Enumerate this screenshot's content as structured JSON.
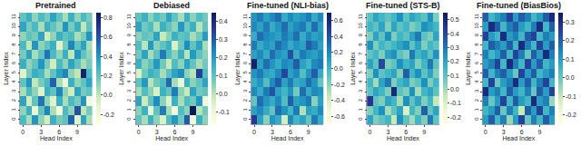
{
  "chart_data": [
    {
      "type": "heatmap",
      "title": "Pretrained",
      "x_label": "Head Index",
      "y_label": "Layer Index",
      "color": "YlGnBu",
      "x": [
        0,
        1,
        2,
        3,
        4,
        5,
        6,
        7,
        8,
        9,
        10,
        11
      ],
      "y": [
        0,
        1,
        2,
        3,
        4,
        5,
        6,
        7,
        8,
        9,
        10,
        11
      ],
      "xlim": [
        -0.5,
        11.5
      ],
      "ylim": [
        -0.5,
        11.5
      ],
      "xticks": [
        0,
        3,
        6,
        9
      ],
      "yticks": [
        0,
        1,
        2,
        3,
        4,
        5,
        6,
        7,
        8,
        9,
        10,
        11
      ],
      "zlim": [
        -0.3,
        0.85
      ],
      "zticks": [
        -0.2,
        {
          "value": 0,
          "label": "0.0"
        },
        0.2,
        0.4,
        0.6,
        0.8
      ],
      "z": [
        [
          0.25,
          0.05,
          0.4,
          0.1,
          -0.05,
          0.3,
          0.15,
          0.2,
          0.55,
          -0.1,
          0.35,
          0.05
        ],
        [
          0.1,
          0.3,
          -0.15,
          0.2,
          0.45,
          0.05,
          -0.2,
          0.25,
          0.1,
          0.6,
          0.0,
          0.15
        ],
        [
          0.35,
          -0.05,
          0.2,
          0.5,
          0.1,
          -0.1,
          0.3,
          0.05,
          0.25,
          0.15,
          0.4,
          -0.2
        ],
        [
          0.05,
          0.25,
          0.1,
          -0.1,
          0.3,
          0.2,
          0.45,
          0.1,
          -0.05,
          0.35,
          0.15,
          0.2
        ],
        [
          0.2,
          0.4,
          0.0,
          0.15,
          0.25,
          0.55,
          0.05,
          -0.15,
          0.3,
          0.1,
          0.2,
          0.35
        ],
        [
          -0.1,
          0.15,
          0.3,
          0.25,
          0.05,
          0.2,
          0.35,
          0.45,
          0.1,
          0.0,
          0.8,
          0.25
        ],
        [
          0.3,
          0.1,
          0.2,
          0.4,
          0.15,
          -0.05,
          0.25,
          0.1,
          0.35,
          0.2,
          0.05,
          0.15
        ],
        [
          0.15,
          0.35,
          0.05,
          0.2,
          0.5,
          0.25,
          0.1,
          0.3,
          0.0,
          0.4,
          0.2,
          0.1
        ],
        [
          0.25,
          0.0,
          0.4,
          0.1,
          0.2,
          0.3,
          -0.1,
          0.15,
          0.45,
          0.2,
          0.35,
          0.05
        ],
        [
          0.1,
          0.2,
          0.15,
          0.35,
          -0.05,
          0.1,
          0.3,
          0.2,
          0.25,
          0.05,
          0.15,
          0.4
        ],
        [
          0.35,
          0.15,
          0.25,
          0.05,
          0.3,
          0.2,
          0.1,
          0.4,
          0.15,
          0.3,
          0.0,
          0.2
        ],
        [
          0.2,
          0.3,
          0.1,
          0.25,
          0.15,
          0.35,
          0.2,
          0.05,
          0.3,
          0.1,
          0.25,
          0.15
        ]
      ]
    },
    {
      "type": "heatmap",
      "title": "Debiased",
      "x_label": "Head Index",
      "y_label": "Layer Index",
      "color": "YlGnBu",
      "x": [
        0,
        1,
        2,
        3,
        4,
        5,
        6,
        7,
        8,
        9,
        10,
        11
      ],
      "y": [
        0,
        1,
        2,
        3,
        4,
        5,
        6,
        7,
        8,
        9,
        10,
        11
      ],
      "xlim": [
        -0.5,
        11.5
      ],
      "ylim": [
        -0.5,
        11.5
      ],
      "xticks": [
        0,
        3,
        6,
        9
      ],
      "yticks": [
        0,
        1,
        2,
        3,
        4,
        5,
        6,
        7,
        8,
        9,
        10,
        11
      ],
      "zlim": [
        -0.17,
        0.45
      ],
      "zticks": [
        -0.1,
        {
          "value": 0,
          "label": "0.0"
        },
        0.1,
        0.2,
        0.3,
        0.4
      ],
      "z": [
        [
          0.1,
          0.02,
          0.15,
          0.05,
          -0.05,
          0.12,
          0.2,
          0.08,
          0.3,
          -0.1,
          0.15,
          0.05
        ],
        [
          0.05,
          0.15,
          -0.08,
          0.1,
          0.25,
          0.02,
          -0.12,
          0.12,
          0.05,
          0.45,
          0.0,
          0.08
        ],
        [
          0.18,
          -0.03,
          0.1,
          0.22,
          0.05,
          -0.06,
          0.15,
          0.02,
          0.12,
          0.08,
          0.2,
          -0.1
        ],
        [
          0.02,
          0.12,
          0.05,
          -0.05,
          0.15,
          0.1,
          0.25,
          0.05,
          -0.02,
          0.18,
          0.08,
          0.1
        ],
        [
          0.1,
          0.2,
          0.0,
          0.08,
          0.12,
          0.28,
          0.02,
          -0.08,
          0.15,
          0.05,
          0.1,
          0.18
        ],
        [
          -0.05,
          0.08,
          0.15,
          0.12,
          0.02,
          0.1,
          0.18,
          0.22,
          0.05,
          0.0,
          0.35,
          0.12
        ],
        [
          0.15,
          0.05,
          0.1,
          0.2,
          0.08,
          -0.02,
          0.12,
          0.05,
          0.18,
          0.1,
          0.02,
          0.08
        ],
        [
          0.08,
          0.18,
          0.02,
          0.1,
          0.25,
          0.12,
          0.05,
          0.15,
          0.0,
          0.2,
          0.1,
          0.05
        ],
        [
          0.12,
          0.0,
          0.2,
          0.05,
          0.1,
          0.15,
          -0.05,
          0.08,
          0.22,
          0.1,
          0.18,
          0.02
        ],
        [
          0.05,
          0.1,
          0.08,
          0.18,
          -0.02,
          0.05,
          0.15,
          0.1,
          0.12,
          0.02,
          0.08,
          0.2
        ],
        [
          0.18,
          0.08,
          0.12,
          0.02,
          0.15,
          0.1,
          0.05,
          0.2,
          0.08,
          0.15,
          0.0,
          0.1
        ],
        [
          0.1,
          0.15,
          0.05,
          0.12,
          0.08,
          0.18,
          0.1,
          0.02,
          0.15,
          0.05,
          0.12,
          0.08
        ]
      ]
    },
    {
      "type": "heatmap",
      "title": "Fine-tuned (NLI-bias)",
      "x_label": "Head Index",
      "y_label": "Layer Index",
      "color": "YlGnBu",
      "x": [
        0,
        1,
        2,
        3,
        4,
        5,
        6,
        7,
        8,
        9,
        10,
        11
      ],
      "y": [
        0,
        1,
        2,
        3,
        4,
        5,
        6,
        7,
        8,
        9,
        10,
        11
      ],
      "xlim": [
        -0.5,
        11.5
      ],
      "ylim": [
        -0.5,
        11.5
      ],
      "xticks": [
        0,
        3,
        6,
        9
      ],
      "yticks": [
        0,
        1,
        2,
        3,
        4,
        5,
        6,
        7,
        8,
        9,
        10,
        11
      ],
      "zlim": [
        -0.7,
        0.7
      ],
      "zticks": [
        -0.6,
        -0.4,
        -0.2,
        {
          "value": 0,
          "label": "0.0"
        },
        0.2,
        0.4,
        0.6
      ],
      "z": [
        [
          0.5,
          0.1,
          -0.2,
          0.15,
          0.05,
          -0.4,
          0.2,
          0.0,
          0.1,
          -0.1,
          0.25,
          0.05
        ],
        [
          0.1,
          0.2,
          0.05,
          -0.1,
          0.3,
          0.15,
          0.0,
          0.25,
          -0.3,
          0.1,
          0.05,
          0.2
        ],
        [
          -0.1,
          0.3,
          0.15,
          0.05,
          0.2,
          -0.05,
          0.35,
          0.1,
          0.15,
          0.25,
          -0.2,
          0.1
        ],
        [
          0.2,
          0.05,
          0.25,
          0.4,
          0.1,
          0.0,
          0.15,
          -0.15,
          0.3,
          0.05,
          0.2,
          0.15
        ],
        [
          0.05,
          0.15,
          -0.05,
          0.2,
          0.35,
          0.1,
          0.25,
          0.05,
          0.1,
          0.3,
          0.15,
          -0.1
        ],
        [
          0.15,
          0.25,
          0.1,
          0.05,
          0.2,
          0.45,
          0.1,
          0.2,
          -0.05,
          0.15,
          0.35,
          0.05
        ],
        [
          0.65,
          0.1,
          0.3,
          0.15,
          0.05,
          0.2,
          0.15,
          0.35,
          0.1,
          0.0,
          0.2,
          0.25
        ],
        [
          0.1,
          0.2,
          0.05,
          0.3,
          0.15,
          0.1,
          0.4,
          0.05,
          0.25,
          0.15,
          0.1,
          0.2
        ],
        [
          0.25,
          0.05,
          0.15,
          0.1,
          0.3,
          0.2,
          0.05,
          0.15,
          0.1,
          0.35,
          0.25,
          0.1
        ],
        [
          0.05,
          0.3,
          0.2,
          0.15,
          0.1,
          0.25,
          0.15,
          0.3,
          0.05,
          0.2,
          0.1,
          0.15
        ],
        [
          0.2,
          0.1,
          0.25,
          0.05,
          0.15,
          0.3,
          0.1,
          0.2,
          0.25,
          0.05,
          0.3,
          0.1
        ],
        [
          0.15,
          0.25,
          0.1,
          0.2,
          0.3,
          0.05,
          0.2,
          0.1,
          0.15,
          0.25,
          0.05,
          0.2
        ]
      ]
    },
    {
      "type": "heatmap",
      "title": "Fine-tuned (STS-B)",
      "x_label": "Head Index",
      "y_label": "Layer Index",
      "color": "YlGnBu",
      "x": [
        0,
        1,
        2,
        3,
        4,
        5,
        6,
        7,
        8,
        9,
        10,
        11
      ],
      "y": [
        0,
        1,
        2,
        3,
        4,
        5,
        6,
        7,
        8,
        9,
        10,
        11
      ],
      "xlim": [
        -0.5,
        11.5
      ],
      "ylim": [
        -0.5,
        11.5
      ],
      "xticks": [
        0,
        3,
        6,
        9
      ],
      "yticks": [
        0,
        1,
        2,
        3,
        4,
        5,
        6,
        7,
        8,
        9,
        10,
        11
      ],
      "zlim": [
        -0.25,
        0.55
      ],
      "zticks": [
        -0.2,
        -0.1,
        {
          "value": 0,
          "label": "0.0"
        },
        0.1,
        0.2,
        0.3,
        0.4,
        0.5
      ],
      "z": [
        [
          0.2,
          0.05,
          0.1,
          0.15,
          -0.05,
          0.25,
          0.1,
          0.0,
          0.15,
          0.05,
          0.3,
          0.1
        ],
        [
          0.05,
          0.15,
          0.25,
          0.0,
          0.1,
          0.2,
          -0.1,
          0.15,
          0.05,
          0.35,
          0.1,
          0.2
        ],
        [
          0.45,
          0.1,
          0.05,
          0.2,
          0.15,
          0.0,
          0.25,
          0.1,
          0.2,
          0.05,
          0.15,
          -0.05
        ],
        [
          0.1,
          0.2,
          0.15,
          0.05,
          0.5,
          0.1,
          0.05,
          0.25,
          0.0,
          0.15,
          0.2,
          0.1
        ],
        [
          0.15,
          0.0,
          0.2,
          0.3,
          0.05,
          0.15,
          0.2,
          0.05,
          0.1,
          0.25,
          0.05,
          0.15
        ],
        [
          0.05,
          0.25,
          0.1,
          0.15,
          0.2,
          0.05,
          0.35,
          0.15,
          0.25,
          0.1,
          0.2,
          0.05
        ],
        [
          0.2,
          0.1,
          0.4,
          0.05,
          0.1,
          0.25,
          0.15,
          0.2,
          0.05,
          0.15,
          0.3,
          0.1
        ],
        [
          0.1,
          0.15,
          0.05,
          0.2,
          0.25,
          0.1,
          0.05,
          0.3,
          0.15,
          0.2,
          0.1,
          0.25
        ],
        [
          0.25,
          0.05,
          0.15,
          0.1,
          0.15,
          0.2,
          0.25,
          0.1,
          0.2,
          0.05,
          0.15,
          0.1
        ],
        [
          0.05,
          0.2,
          0.1,
          0.25,
          0.05,
          0.15,
          0.1,
          0.2,
          0.3,
          0.1,
          0.05,
          0.2
        ],
        [
          0.15,
          0.1,
          0.2,
          0.05,
          0.2,
          0.1,
          0.15,
          0.05,
          0.1,
          0.25,
          0.2,
          0.15
        ],
        [
          0.1,
          0.2,
          0.15,
          0.1,
          0.15,
          0.25,
          0.1,
          0.2,
          0.15,
          0.1,
          0.25,
          0.05
        ]
      ]
    },
    {
      "type": "heatmap",
      "title": "Fine-tuned (BiasBios)",
      "x_label": "Head Index",
      "y_label": "Layer Index",
      "color": "YlGnBu",
      "x": [
        0,
        1,
        2,
        3,
        4,
        5,
        6,
        7,
        8,
        9,
        10,
        11
      ],
      "y": [
        0,
        1,
        2,
        3,
        4,
        5,
        6,
        7,
        8,
        9,
        10,
        11
      ],
      "xlim": [
        -0.5,
        11.5
      ],
      "ylim": [
        -0.5,
        11.5
      ],
      "xticks": [
        0,
        3,
        6,
        9
      ],
      "yticks": [
        0,
        1,
        2,
        3,
        4,
        5,
        6,
        7,
        8,
        9,
        10,
        11
      ],
      "zlim": [
        -0.25,
        0.35
      ],
      "zticks": [
        -0.2,
        -0.1,
        {
          "value": 0,
          "label": "0.0"
        },
        0.1,
        0.2,
        0.3
      ],
      "z": [
        [
          0.1,
          0.2,
          0.05,
          0.15,
          -0.05,
          0.1,
          0.25,
          0.0,
          0.15,
          0.05,
          0.2,
          0.1
        ],
        [
          0.05,
          0.1,
          0.2,
          0.0,
          0.15,
          0.05,
          -0.1,
          0.2,
          0.1,
          0.25,
          0.05,
          0.15
        ],
        [
          0.15,
          0.0,
          0.1,
          0.25,
          0.05,
          0.2,
          0.1,
          0.05,
          0.3,
          0.1,
          0.15,
          -0.05
        ],
        [
          0.3,
          0.1,
          0.15,
          0.05,
          0.2,
          0.1,
          0.05,
          0.15,
          0.0,
          0.2,
          0.1,
          0.25
        ],
        [
          0.05,
          0.25,
          0.0,
          0.1,
          0.15,
          0.3,
          0.1,
          0.2,
          0.05,
          0.15,
          0.25,
          0.05
        ],
        [
          0.2,
          0.05,
          0.15,
          0.2,
          0.1,
          0.0,
          0.25,
          0.1,
          0.2,
          0.05,
          0.1,
          0.15
        ],
        [
          0.1,
          0.15,
          0.25,
          0.05,
          0.3,
          0.15,
          0.05,
          0.25,
          0.1,
          0.2,
          0.05,
          0.1
        ],
        [
          0.15,
          0.05,
          0.1,
          0.2,
          0.05,
          0.25,
          0.15,
          0.0,
          0.2,
          0.1,
          0.3,
          0.15
        ],
        [
          0.05,
          0.2,
          0.15,
          0.1,
          0.2,
          0.05,
          0.3,
          0.15,
          0.05,
          0.25,
          0.1,
          0.2
        ],
        [
          0.25,
          0.1,
          0.05,
          0.3,
          0.1,
          0.15,
          0.05,
          0.2,
          0.25,
          0.05,
          0.15,
          0.1
        ],
        [
          0.1,
          0.3,
          0.2,
          0.05,
          0.15,
          0.2,
          0.1,
          0.05,
          0.15,
          0.3,
          0.05,
          0.2
        ],
        [
          0.2,
          0.05,
          0.1,
          0.15,
          0.25,
          0.1,
          0.2,
          0.15,
          0.05,
          0.1,
          0.2,
          0.3
        ]
      ]
    }
  ]
}
